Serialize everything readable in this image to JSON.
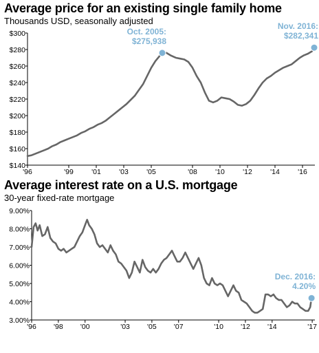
{
  "chart_data": [
    {
      "type": "line",
      "title": "Average price for an existing single family home",
      "subtitle": "Thousands USD, seasonally adjusted",
      "xlim": [
        1996,
        2016.9
      ],
      "ylim": [
        140,
        300
      ],
      "xticks": [
        {
          "x": 1996,
          "label": "'96"
        },
        {
          "x": 1999,
          "label": "'99"
        },
        {
          "x": 2001,
          "label": "'01"
        },
        {
          "x": 2003,
          "label": "'03"
        },
        {
          "x": 2005,
          "label": "'05"
        },
        {
          "x": 2008,
          "label": "'08"
        },
        {
          "x": 2010,
          "label": "'10"
        },
        {
          "x": 2012,
          "label": "'12"
        },
        {
          "x": 2014,
          "label": "'14"
        },
        {
          "x": 2016,
          "label": "'16"
        }
      ],
      "yticks": [
        {
          "y": 140,
          "label": "$140"
        },
        {
          "y": 160,
          "label": "$160"
        },
        {
          "y": 180,
          "label": "$180"
        },
        {
          "y": 200,
          "label": "$200"
        },
        {
          "y": 220,
          "label": "$220"
        },
        {
          "y": 240,
          "label": "$240"
        },
        {
          "y": 260,
          "label": "$260"
        },
        {
          "y": 280,
          "label": "$280"
        },
        {
          "y": 300,
          "label": "$300"
        }
      ],
      "grid": false,
      "line_color": "#666666",
      "marker_color": "#7fb3d5",
      "series": [
        {
          "points": [
            [
              1996.0,
              151
            ],
            [
              1996.3,
              152
            ],
            [
              1996.6,
              154
            ],
            [
              1996.9,
              156
            ],
            [
              1997.2,
              158
            ],
            [
              1997.5,
              160
            ],
            [
              1997.8,
              163
            ],
            [
              1998.1,
              165
            ],
            [
              1998.4,
              168
            ],
            [
              1998.7,
              170
            ],
            [
              1999.0,
              172
            ],
            [
              1999.3,
              174
            ],
            [
              1999.6,
              176
            ],
            [
              1999.9,
              179
            ],
            [
              2000.2,
              181
            ],
            [
              2000.5,
              184
            ],
            [
              2000.8,
              186
            ],
            [
              2001.1,
              189
            ],
            [
              2001.4,
              191
            ],
            [
              2001.7,
              194
            ],
            [
              2002.0,
              198
            ],
            [
              2002.3,
              202
            ],
            [
              2002.6,
              206
            ],
            [
              2002.9,
              210
            ],
            [
              2003.2,
              214
            ],
            [
              2003.5,
              219
            ],
            [
              2003.8,
              224
            ],
            [
              2004.1,
              231
            ],
            [
              2004.4,
              238
            ],
            [
              2004.7,
              248
            ],
            [
              2005.0,
              258
            ],
            [
              2005.3,
              266
            ],
            [
              2005.6,
              272
            ],
            [
              2005.8,
              276
            ],
            [
              2006.1,
              276
            ],
            [
              2006.4,
              273
            ],
            [
              2006.8,
              270
            ],
            [
              2007.1,
              269
            ],
            [
              2007.4,
              268
            ],
            [
              2007.7,
              265
            ],
            [
              2008.0,
              258
            ],
            [
              2008.3,
              248
            ],
            [
              2008.6,
              240
            ],
            [
              2008.9,
              228
            ],
            [
              2009.2,
              218
            ],
            [
              2009.5,
              216
            ],
            [
              2009.8,
              218
            ],
            [
              2010.1,
              222
            ],
            [
              2010.4,
              221
            ],
            [
              2010.7,
              220
            ],
            [
              2011.0,
              217
            ],
            [
              2011.3,
              213
            ],
            [
              2011.6,
              212
            ],
            [
              2011.9,
              214
            ],
            [
              2012.2,
              218
            ],
            [
              2012.5,
              225
            ],
            [
              2012.8,
              233
            ],
            [
              2013.1,
              240
            ],
            [
              2013.4,
              245
            ],
            [
              2013.7,
              248
            ],
            [
              2014.0,
              252
            ],
            [
              2014.3,
              255
            ],
            [
              2014.6,
              258
            ],
            [
              2014.9,
              260
            ],
            [
              2015.2,
              262
            ],
            [
              2015.5,
              266
            ],
            [
              2015.8,
              270
            ],
            [
              2016.1,
              273
            ],
            [
              2016.4,
              275
            ],
            [
              2016.7,
              278
            ],
            [
              2016.85,
              282.341
            ]
          ]
        }
      ],
      "annotations": [
        {
          "x": 2005.8,
          "y": 275.938,
          "label_line1": "Oct. 2005:",
          "label_line2": "$275,938",
          "anchor": "end"
        },
        {
          "x": 2016.85,
          "y": 282.341,
          "label_line1": "Nov. 2016:",
          "label_line2": "$282,341",
          "anchor": "end"
        }
      ]
    },
    {
      "type": "line",
      "title": "Average interest rate on a U.S. mortgage",
      "subtitle": "30-year fixed-rate mortgage",
      "xlim": [
        1996,
        2017.2
      ],
      "ylim": [
        3.0,
        9.0
      ],
      "xticks": [
        {
          "x": 1996,
          "label": "'96"
        },
        {
          "x": 1998,
          "label": "'98"
        },
        {
          "x": 2000,
          "label": "'00"
        },
        {
          "x": 2003,
          "label": "'03"
        },
        {
          "x": 2005,
          "label": "'05"
        },
        {
          "x": 2007,
          "label": "'07"
        },
        {
          "x": 2010,
          "label": "'10"
        },
        {
          "x": 2012,
          "label": "'12"
        },
        {
          "x": 2014,
          "label": "'14"
        },
        {
          "x": 2017,
          "label": "'17"
        }
      ],
      "yticks": [
        {
          "y": 3.0,
          "label": "3.00%"
        },
        {
          "y": 4.0,
          "label": "4.00%"
        },
        {
          "y": 5.0,
          "label": "5.00%"
        },
        {
          "y": 6.0,
          "label": "6.00%"
        },
        {
          "y": 7.0,
          "label": "7.00%"
        },
        {
          "y": 8.0,
          "label": "8.00%"
        },
        {
          "y": 9.0,
          "label": "9.00%"
        }
      ],
      "grid": false,
      "line_color": "#666666",
      "marker_color": "#7fb3d5",
      "series": [
        {
          "points": [
            [
              1996.0,
              7.0
            ],
            [
              1996.15,
              8.1
            ],
            [
              1996.3,
              8.3
            ],
            [
              1996.45,
              7.9
            ],
            [
              1996.6,
              8.2
            ],
            [
              1996.8,
              7.6
            ],
            [
              1997.0,
              7.7
            ],
            [
              1997.2,
              8.1
            ],
            [
              1997.4,
              7.5
            ],
            [
              1997.6,
              7.3
            ],
            [
              1997.8,
              7.2
            ],
            [
              1998.0,
              6.9
            ],
            [
              1998.2,
              6.8
            ],
            [
              1998.4,
              6.9
            ],
            [
              1998.6,
              6.7
            ],
            [
              1998.8,
              6.8
            ],
            [
              1999.0,
              6.9
            ],
            [
              1999.2,
              7.0
            ],
            [
              1999.4,
              7.3
            ],
            [
              1999.6,
              7.6
            ],
            [
              1999.8,
              7.8
            ],
            [
              2000.0,
              8.2
            ],
            [
              2000.15,
              8.5
            ],
            [
              2000.3,
              8.2
            ],
            [
              2000.5,
              8.0
            ],
            [
              2000.7,
              7.7
            ],
            [
              2000.9,
              7.2
            ],
            [
              2001.1,
              7.0
            ],
            [
              2001.3,
              7.1
            ],
            [
              2001.5,
              6.9
            ],
            [
              2001.7,
              6.7
            ],
            [
              2001.9,
              7.1
            ],
            [
              2002.1,
              6.8
            ],
            [
              2002.3,
              6.6
            ],
            [
              2002.5,
              6.2
            ],
            [
              2002.7,
              6.1
            ],
            [
              2002.9,
              5.9
            ],
            [
              2003.1,
              5.7
            ],
            [
              2003.3,
              5.3
            ],
            [
              2003.5,
              5.6
            ],
            [
              2003.7,
              6.2
            ],
            [
              2003.9,
              5.9
            ],
            [
              2004.1,
              5.6
            ],
            [
              2004.3,
              6.3
            ],
            [
              2004.5,
              5.9
            ],
            [
              2004.7,
              5.7
            ],
            [
              2004.9,
              5.6
            ],
            [
              2005.1,
              5.8
            ],
            [
              2005.3,
              5.6
            ],
            [
              2005.5,
              5.8
            ],
            [
              2005.7,
              6.1
            ],
            [
              2005.9,
              6.3
            ],
            [
              2006.1,
              6.4
            ],
            [
              2006.3,
              6.6
            ],
            [
              2006.5,
              6.8
            ],
            [
              2006.7,
              6.5
            ],
            [
              2006.9,
              6.2
            ],
            [
              2007.1,
              6.2
            ],
            [
              2007.3,
              6.4
            ],
            [
              2007.5,
              6.7
            ],
            [
              2007.7,
              6.4
            ],
            [
              2007.9,
              6.1
            ],
            [
              2008.1,
              5.8
            ],
            [
              2008.3,
              6.1
            ],
            [
              2008.5,
              6.4
            ],
            [
              2008.7,
              6.0
            ],
            [
              2008.9,
              5.3
            ],
            [
              2009.1,
              5.0
            ],
            [
              2009.3,
              4.9
            ],
            [
              2009.5,
              5.3
            ],
            [
              2009.7,
              5.0
            ],
            [
              2009.9,
              4.9
            ],
            [
              2010.1,
              5.0
            ],
            [
              2010.3,
              4.9
            ],
            [
              2010.5,
              4.6
            ],
            [
              2010.7,
              4.3
            ],
            [
              2010.9,
              4.6
            ],
            [
              2011.1,
              4.9
            ],
            [
              2011.3,
              4.6
            ],
            [
              2011.5,
              4.5
            ],
            [
              2011.7,
              4.1
            ],
            [
              2011.9,
              4.0
            ],
            [
              2012.1,
              3.9
            ],
            [
              2012.3,
              3.7
            ],
            [
              2012.5,
              3.5
            ],
            [
              2012.7,
              3.4
            ],
            [
              2012.9,
              3.4
            ],
            [
              2013.1,
              3.5
            ],
            [
              2013.3,
              3.6
            ],
            [
              2013.5,
              4.4
            ],
            [
              2013.7,
              4.4
            ],
            [
              2013.9,
              4.3
            ],
            [
              2014.1,
              4.4
            ],
            [
              2014.3,
              4.2
            ],
            [
              2014.5,
              4.1
            ],
            [
              2014.7,
              4.1
            ],
            [
              2014.9,
              3.9
            ],
            [
              2015.1,
              3.7
            ],
            [
              2015.3,
              3.8
            ],
            [
              2015.5,
              4.0
            ],
            [
              2015.7,
              3.9
            ],
            [
              2015.9,
              3.9
            ],
            [
              2016.1,
              3.7
            ],
            [
              2016.3,
              3.6
            ],
            [
              2016.5,
              3.5
            ],
            [
              2016.7,
              3.5
            ],
            [
              2016.85,
              3.7
            ],
            [
              2016.95,
              4.2
            ]
          ]
        }
      ],
      "annotations": [
        {
          "x": 2016.95,
          "y": 4.2,
          "label_line1": "Dec. 2016:",
          "label_line2": "4.20%",
          "anchor": "end"
        }
      ]
    }
  ]
}
